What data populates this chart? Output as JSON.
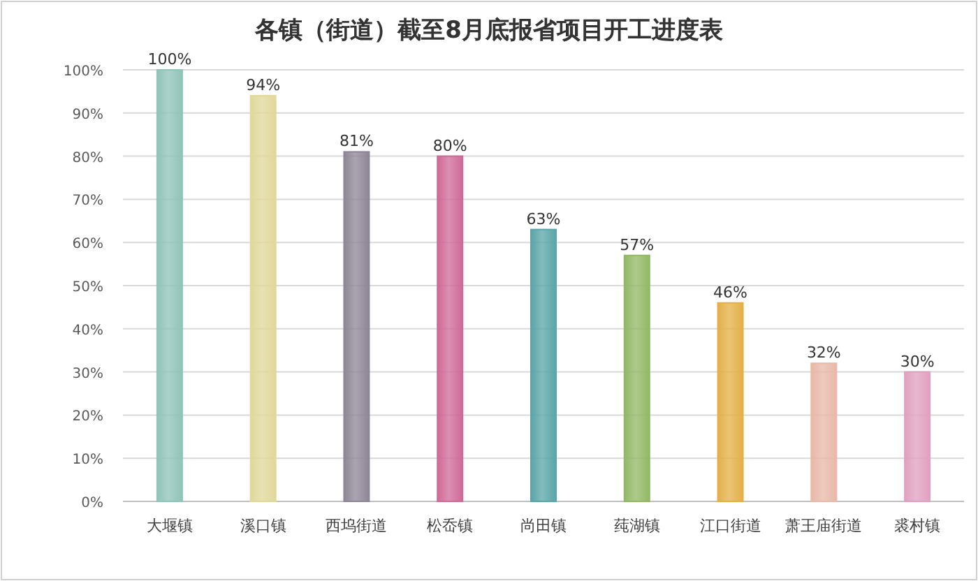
{
  "chart_data": {
    "type": "bar",
    "title": "各镇（街道）截至8月底报省项目开工进度表",
    "categories": [
      "大堰镇",
      "溪口镇",
      "西坞街道",
      "松岙镇",
      "尚田镇",
      "莼湖镇",
      "江口街道",
      "萧王庙街道",
      "裘村镇"
    ],
    "values": [
      100,
      94,
      81,
      80,
      63,
      57,
      46,
      32,
      30
    ],
    "value_labels": [
      "100%",
      "94%",
      "81%",
      "80%",
      "63%",
      "57%",
      "46%",
      "32%",
      "30%"
    ],
    "colors": [
      "#8fc4b8",
      "#e0d89a",
      "#8e8696",
      "#cf6a98",
      "#5aa5a8",
      "#92b866",
      "#e3b048",
      "#e8b8a8",
      "#e0a0c0"
    ],
    "ylim": [
      0,
      100
    ],
    "yticks": [
      {
        "value": 0,
        "label": "0%"
      },
      {
        "value": 10,
        "label": "10%"
      },
      {
        "value": 20,
        "label": "20%"
      },
      {
        "value": 30,
        "label": "30%"
      },
      {
        "value": 40,
        "label": "40%"
      },
      {
        "value": 50,
        "label": "50%"
      },
      {
        "value": 60,
        "label": "60%"
      },
      {
        "value": 70,
        "label": "70%"
      },
      {
        "value": 80,
        "label": "80%"
      },
      {
        "value": 90,
        "label": "90%"
      },
      {
        "value": 100,
        "label": "100%"
      }
    ],
    "grid": "y"
  }
}
